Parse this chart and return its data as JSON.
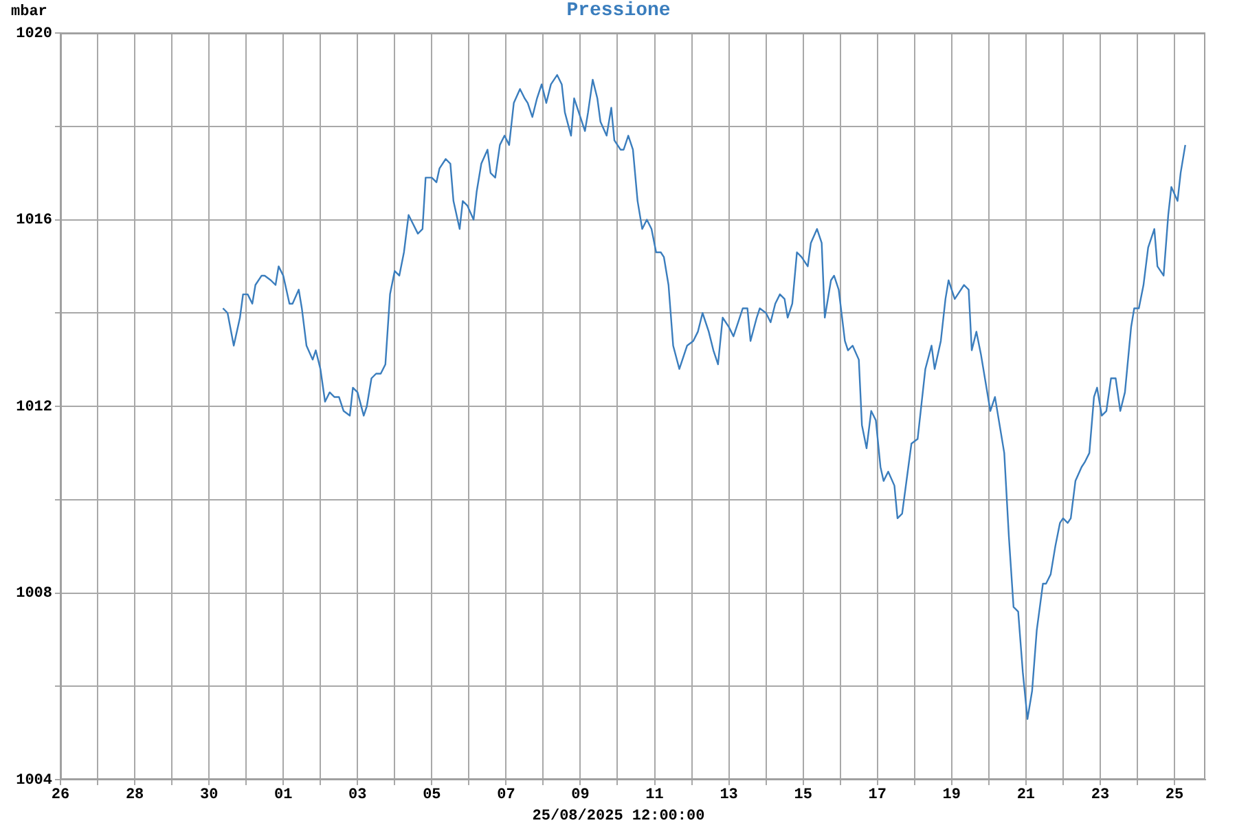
{
  "chart_data": {
    "type": "line",
    "title": "Pressione",
    "xlabel": "25/08/2025 12:00:00",
    "ylabel": "mbar",
    "grid": true,
    "xlim": [
      "2025-07-26T00:00",
      "2025-08-25T20:00"
    ],
    "xticks": [
      {
        "value": "2025-07-26",
        "label": "26"
      },
      {
        "value": "2025-07-27",
        "label": null
      },
      {
        "value": "2025-07-28",
        "label": "28"
      },
      {
        "value": "2025-07-29",
        "label": null
      },
      {
        "value": "2025-07-30",
        "label": "30"
      },
      {
        "value": "2025-07-31",
        "label": null
      },
      {
        "value": "2025-08-01",
        "label": "01"
      },
      {
        "value": "2025-08-02",
        "label": null
      },
      {
        "value": "2025-08-03",
        "label": "03"
      },
      {
        "value": "2025-08-04",
        "label": null
      },
      {
        "value": "2025-08-05",
        "label": "05"
      },
      {
        "value": "2025-08-06",
        "label": null
      },
      {
        "value": "2025-08-07",
        "label": "07"
      },
      {
        "value": "2025-08-08",
        "label": null
      },
      {
        "value": "2025-08-09",
        "label": "09"
      },
      {
        "value": "2025-08-10",
        "label": null
      },
      {
        "value": "2025-08-11",
        "label": "11"
      },
      {
        "value": "2025-08-12",
        "label": null
      },
      {
        "value": "2025-08-13",
        "label": "13"
      },
      {
        "value": "2025-08-14",
        "label": null
      },
      {
        "value": "2025-08-15",
        "label": "15"
      },
      {
        "value": "2025-08-16",
        "label": null
      },
      {
        "value": "2025-08-17",
        "label": "17"
      },
      {
        "value": "2025-08-18",
        "label": null
      },
      {
        "value": "2025-08-19",
        "label": "19"
      },
      {
        "value": "2025-08-20",
        "label": null
      },
      {
        "value": "2025-08-21",
        "label": "21"
      },
      {
        "value": "2025-08-22",
        "label": null
      },
      {
        "value": "2025-08-23",
        "label": "23"
      },
      {
        "value": "2025-08-24",
        "label": null
      },
      {
        "value": "2025-08-25",
        "label": "25"
      }
    ],
    "ylim": [
      1004,
      1020
    ],
    "yticks": [
      1004,
      {
        "value": 1006,
        "label": null
      },
      1008,
      {
        "value": 1010,
        "label": null
      },
      1012,
      {
        "value": 1014,
        "label": null
      },
      1016,
      {
        "value": 1018,
        "label": null
      },
      1020
    ],
    "x": [
      "2025-07-30T09:00",
      "2025-07-30T12:00",
      "2025-07-30T16:00",
      "2025-07-30T20:00",
      "2025-07-30T22:00",
      "2025-07-31T01:00",
      "2025-07-31T04:00",
      "2025-07-31T06:00",
      "2025-07-31T10:00",
      "2025-07-31T12:00",
      "2025-07-31T16:00",
      "2025-07-31T19:00",
      "2025-07-31T21:00",
      "2025-08-01T00:00",
      "2025-08-01T04:00",
      "2025-08-01T06:00",
      "2025-08-01T10:00",
      "2025-08-01T12:00",
      "2025-08-01T15:00",
      "2025-08-01T19:00",
      "2025-08-01T21:00",
      "2025-08-02T00:00",
      "2025-08-02T03:00",
      "2025-08-02T06:00",
      "2025-08-02T09:00",
      "2025-08-02T12:00",
      "2025-08-02T15:00",
      "2025-08-02T19:00",
      "2025-08-02T21:00",
      "2025-08-03T00:00",
      "2025-08-03T04:00",
      "2025-08-03T06:00",
      "2025-08-03T09:00",
      "2025-08-03T12:00",
      "2025-08-03T15:00",
      "2025-08-03T18:00",
      "2025-08-03T21:00",
      "2025-08-04T00:00",
      "2025-08-04T03:00",
      "2025-08-04T06:00",
      "2025-08-04T09:00",
      "2025-08-04T12:00",
      "2025-08-04T15:00",
      "2025-08-04T18:00",
      "2025-08-04T20:00",
      "2025-08-05T00:00",
      "2025-08-05T03:00",
      "2025-08-05T05:00",
      "2025-08-05T09:00",
      "2025-08-05T12:00",
      "2025-08-05T14:00",
      "2025-08-05T18:00",
      "2025-08-05T20:00",
      "2025-08-05T23:00",
      "2025-08-06T03:00",
      "2025-08-06T05:00",
      "2025-08-06T08:00",
      "2025-08-06T12:00",
      "2025-08-06T14:00",
      "2025-08-06T17:00",
      "2025-08-06T20:00",
      "2025-08-06T23:00",
      "2025-08-07T02:00",
      "2025-08-07T05:00",
      "2025-08-07T09:00",
      "2025-08-07T12:00",
      "2025-08-07T14:00",
      "2025-08-07T17:00",
      "2025-08-07T20:00",
      "2025-08-07T23:00",
      "2025-08-08T02:00",
      "2025-08-08T05:00",
      "2025-08-08T09:00",
      "2025-08-08T12:00",
      "2025-08-08T14:00",
      "2025-08-08T18:00",
      "2025-08-08T20:00",
      "2025-08-08T23:00",
      "2025-08-09T03:00",
      "2025-08-09T05:00",
      "2025-08-09T08:00",
      "2025-08-09T11:00",
      "2025-08-09T13:00",
      "2025-08-09T17:00",
      "2025-08-09T20:00",
      "2025-08-09T22:00",
      "2025-08-10T02:00",
      "2025-08-10T04:00",
      "2025-08-10T07:00",
      "2025-08-10T10:00",
      "2025-08-10T13:00",
      "2025-08-10T16:00",
      "2025-08-10T19:00",
      "2025-08-10T22:00",
      "2025-08-11T01:00",
      "2025-08-11T04:00",
      "2025-08-11T06:00",
      "2025-08-11T09:00",
      "2025-08-11T12:00",
      "2025-08-11T16:00",
      "2025-08-11T19:00",
      "2025-08-11T21:00",
      "2025-08-12T01:00",
      "2025-08-12T04:00",
      "2025-08-12T07:00",
      "2025-08-12T11:00",
      "2025-08-12T14:00",
      "2025-08-12T17:00",
      "2025-08-12T20:00",
      "2025-08-13T00:00",
      "2025-08-13T03:00",
      "2025-08-13T06:00",
      "2025-08-13T09:00",
      "2025-08-13T12:00",
      "2025-08-13T14:00",
      "2025-08-13T18:00",
      "2025-08-13T20:00",
      "2025-08-14T00:00",
      "2025-08-14T03:00",
      "2025-08-14T06:00",
      "2025-08-14T09:00",
      "2025-08-14T12:00",
      "2025-08-14T14:00",
      "2025-08-14T17:00",
      "2025-08-14T20:00",
      "2025-08-14T23:00",
      "2025-08-15T03:00",
      "2025-08-15T05:00",
      "2025-08-15T09:00",
      "2025-08-15T12:00",
      "2025-08-15T14:00",
      "2025-08-15T18:00",
      "2025-08-15T20:00",
      "2025-08-15T23:00",
      "2025-08-16T03:00",
      "2025-08-16T05:00",
      "2025-08-16T08:00",
      "2025-08-16T12:00",
      "2025-08-16T14:00",
      "2025-08-16T17:00",
      "2025-08-16T20:00",
      "2025-08-16T23:00",
      "2025-08-17T02:00",
      "2025-08-17T04:00",
      "2025-08-17T07:00",
      "2025-08-17T11:00",
      "2025-08-17T13:00",
      "2025-08-17T16:00",
      "2025-08-17T20:00",
      "2025-08-17T22:00",
      "2025-08-18T02:00",
      "2025-08-18T04:00",
      "2025-08-18T07:00",
      "2025-08-18T11:00",
      "2025-08-18T13:00",
      "2025-08-18T17:00",
      "2025-08-18T20:00",
      "2025-08-18T22:00",
      "2025-08-19T02:00",
      "2025-08-19T04:00",
      "2025-08-19T08:00",
      "2025-08-19T11:00",
      "2025-08-19T13:00",
      "2025-08-19T16:00",
      "2025-08-19T19:00",
      "2025-08-19T22:00",
      "2025-08-20T01:00",
      "2025-08-20T04:00",
      "2025-08-20T07:00",
      "2025-08-20T10:00",
      "2025-08-20T13:00",
      "2025-08-20T16:00",
      "2025-08-20T19:00",
      "2025-08-20T22:00",
      "2025-08-21T01:00",
      "2025-08-21T04:00",
      "2025-08-21T07:00",
      "2025-08-21T11:00",
      "2025-08-21T13:00",
      "2025-08-21T16:00",
      "2025-08-21T19:00",
      "2025-08-21T22:00",
      "2025-08-22T00:00",
      "2025-08-22T03:00",
      "2025-08-22T05:00",
      "2025-08-22T08:00",
      "2025-08-22T12:00",
      "2025-08-22T14:00",
      "2025-08-22T17:00",
      "2025-08-22T20:00",
      "2025-08-22T22:00",
      "2025-08-23T01:00",
      "2025-08-23T04:00",
      "2025-08-23T07:00",
      "2025-08-23T10:00",
      "2025-08-23T13:00",
      "2025-08-23T16:00",
      "2025-08-23T20:00",
      "2025-08-23T22:00",
      "2025-08-24T01:00",
      "2025-08-24T04:00",
      "2025-08-24T07:00",
      "2025-08-24T11:00",
      "2025-08-24T13:00",
      "2025-08-24T17:00",
      "2025-08-24T20:00",
      "2025-08-24T22:00",
      "2025-08-25T02:00",
      "2025-08-25T04:00",
      "2025-08-25T07:00"
    ],
    "series": [
      {
        "color": "#3a7dbd",
        "values": [
          1014.1,
          1014.0,
          1013.3,
          1013.9,
          1014.4,
          1014.4,
          1014.2,
          1014.6,
          1014.8,
          1014.8,
          1014.7,
          1014.6,
          1015.0,
          1014.8,
          1014.2,
          1014.2,
          1014.5,
          1014.1,
          1013.3,
          1013.0,
          1013.2,
          1012.8,
          1012.1,
          1012.3,
          1012.2,
          1012.2,
          1011.9,
          1011.8,
          1012.4,
          1012.3,
          1011.8,
          1012.0,
          1012.6,
          1012.7,
          1012.7,
          1012.9,
          1014.4,
          1014.9,
          1014.8,
          1015.3,
          1016.1,
          1015.9,
          1015.7,
          1015.8,
          1016.9,
          1016.9,
          1016.8,
          1017.1,
          1017.3,
          1017.2,
          1016.4,
          1015.8,
          1016.4,
          1016.3,
          1016.0,
          1016.6,
          1017.2,
          1017.5,
          1017.0,
          1016.9,
          1017.6,
          1017.8,
          1017.6,
          1018.5,
          1018.8,
          1018.6,
          1018.5,
          1018.2,
          1018.6,
          1018.9,
          1018.5,
          1018.9,
          1019.1,
          1018.9,
          1018.3,
          1017.8,
          1018.6,
          1018.3,
          1017.9,
          1018.3,
          1019.0,
          1018.6,
          1018.1,
          1017.8,
          1018.4,
          1017.7,
          1017.5,
          1017.5,
          1017.8,
          1017.5,
          1016.4,
          1015.8,
          1016.0,
          1015.8,
          1015.3,
          1015.3,
          1015.2,
          1014.6,
          1013.3,
          1012.8,
          1013.1,
          1013.3,
          1013.4,
          1013.6,
          1014.0,
          1013.6,
          1013.2,
          1012.9,
          1013.9,
          1013.7,
          1013.5,
          1013.8,
          1014.1,
          1014.1,
          1013.4,
          1013.9,
          1014.1,
          1014.0,
          1013.8,
          1014.2,
          1014.4,
          1014.3,
          1013.9,
          1014.2,
          1015.3,
          1015.2,
          1015.0,
          1015.5,
          1015.8,
          1015.5,
          1013.9,
          1014.7,
          1014.8,
          1014.5,
          1013.4,
          1013.2,
          1013.3,
          1013.0,
          1011.6,
          1011.1,
          1011.9,
          1011.7,
          1010.7,
          1010.4,
          1010.6,
          1010.3,
          1009.6,
          1009.7,
          1010.7,
          1011.2,
          1011.3,
          1011.9,
          1012.8,
          1013.3,
          1012.8,
          1013.4,
          1014.3,
          1014.7,
          1014.3,
          1014.4,
          1014.6,
          1014.5,
          1013.2,
          1013.6,
          1013.1,
          1012.5,
          1011.9,
          1012.2,
          1011.6,
          1011.0,
          1009.2,
          1007.7,
          1007.6,
          1006.3,
          1005.3,
          1005.9,
          1007.2,
          1008.2,
          1008.2,
          1008.4,
          1009.0,
          1009.5,
          1009.6,
          1009.5,
          1009.6,
          1010.4,
          1010.7,
          1010.8,
          1011.0,
          1012.2,
          1012.4,
          1011.8,
          1011.9,
          1012.6,
          1012.6,
          1011.9,
          1012.3,
          1013.7,
          1014.1,
          1014.1,
          1014.6,
          1015.4,
          1015.8,
          1015.0,
          1014.8,
          1016.1,
          1016.7,
          1016.4,
          1017.0,
          1017.6
        ]
      }
    ]
  }
}
